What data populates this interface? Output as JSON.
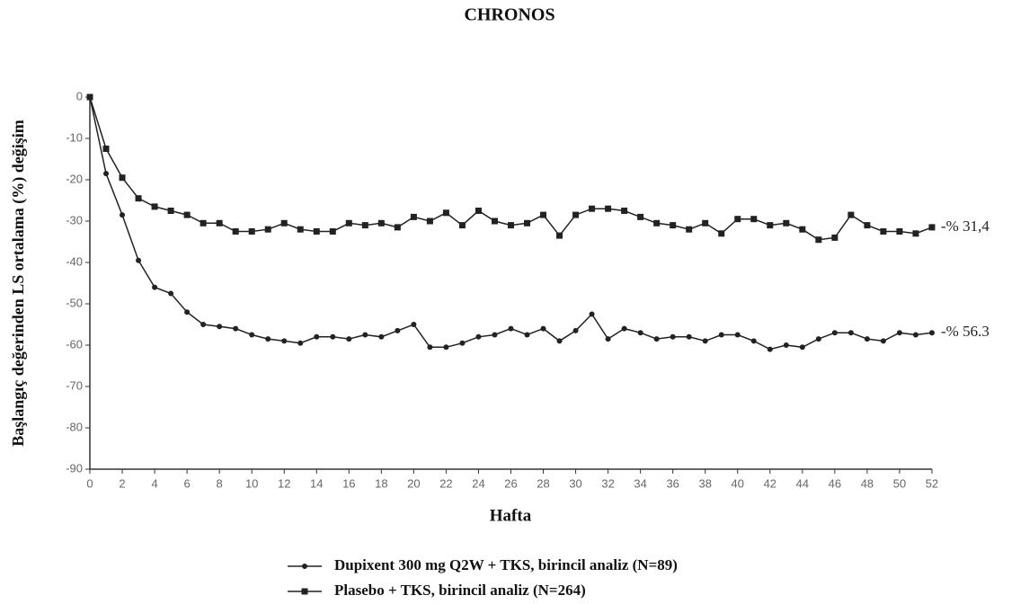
{
  "chart_data": {
    "type": "line",
    "title": "CHRONOS",
    "ylabel": "Başlangıç değerinden  LS ortalama (%) değişim",
    "xlabel": "Hafta",
    "x": [
      0,
      1,
      2,
      3,
      4,
      5,
      6,
      7,
      8,
      9,
      10,
      11,
      12,
      13,
      14,
      15,
      16,
      17,
      18,
      19,
      20,
      21,
      22,
      23,
      24,
      25,
      26,
      27,
      28,
      29,
      30,
      31,
      32,
      33,
      34,
      35,
      36,
      37,
      38,
      39,
      40,
      41,
      42,
      43,
      44,
      45,
      46,
      47,
      48,
      49,
      50,
      51,
      52
    ],
    "xlim": [
      0,
      52
    ],
    "xticks": [
      0,
      2,
      4,
      6,
      8,
      10,
      12,
      14,
      16,
      18,
      20,
      22,
      24,
      26,
      28,
      30,
      32,
      34,
      36,
      38,
      40,
      42,
      44,
      46,
      48,
      50,
      52
    ],
    "ylim": [
      -90,
      0
    ],
    "yticks": [
      0,
      -10,
      -20,
      -30,
      -40,
      -50,
      -60,
      -70,
      -80,
      -90
    ],
    "series": [
      {
        "name": "Dupixent 300 mg Q2W + TKS, birincil analiz (N=89)",
        "color": "#222222",
        "marker": "circle",
        "end_label": "-% 56.3",
        "values": [
          0,
          -18.5,
          -28.5,
          -39.5,
          -46,
          -47.5,
          -52,
          -55,
          -55.5,
          -56,
          -57.5,
          -58.5,
          -59,
          -59.5,
          -58,
          -58,
          -58.5,
          -57.5,
          -58,
          -56.5,
          -55,
          -60.5,
          -60.5,
          -59.5,
          -58,
          -57.5,
          -56,
          -57.5,
          -56,
          -59,
          -56.5,
          -52.5,
          -58.5,
          -56,
          -57,
          -58.5,
          -58,
          -58,
          -59,
          -57.5,
          -57.5,
          -59,
          -61,
          -60,
          -60.5,
          -58.5,
          -57,
          -57,
          -58.5,
          -59,
          -57,
          -57.5,
          -57
        ]
      },
      {
        "name": "Plasebo + TKS, birincil analiz (N=264)",
        "color": "#222222",
        "marker": "square",
        "end_label": "-% 31,4",
        "values": [
          0,
          -12.5,
          -19.5,
          -24.5,
          -26.5,
          -27.5,
          -28.5,
          -30.5,
          -30.5,
          -32.5,
          -32.5,
          -32,
          -30.5,
          -32,
          -32.5,
          -32.5,
          -30.5,
          -31,
          -30.5,
          -31.5,
          -29,
          -30,
          -28,
          -31,
          -27.5,
          -30,
          -31,
          -30.5,
          -28.5,
          -33.5,
          -28.5,
          -27,
          -27,
          -27.5,
          -29,
          -30.5,
          -31,
          -32,
          -30.5,
          -33,
          -29.5,
          -29.5,
          -31,
          -30.5,
          -32,
          -34.5,
          -34,
          -28.5,
          -31,
          -32.5,
          -32.5,
          -33,
          -31.5
        ]
      }
    ]
  }
}
